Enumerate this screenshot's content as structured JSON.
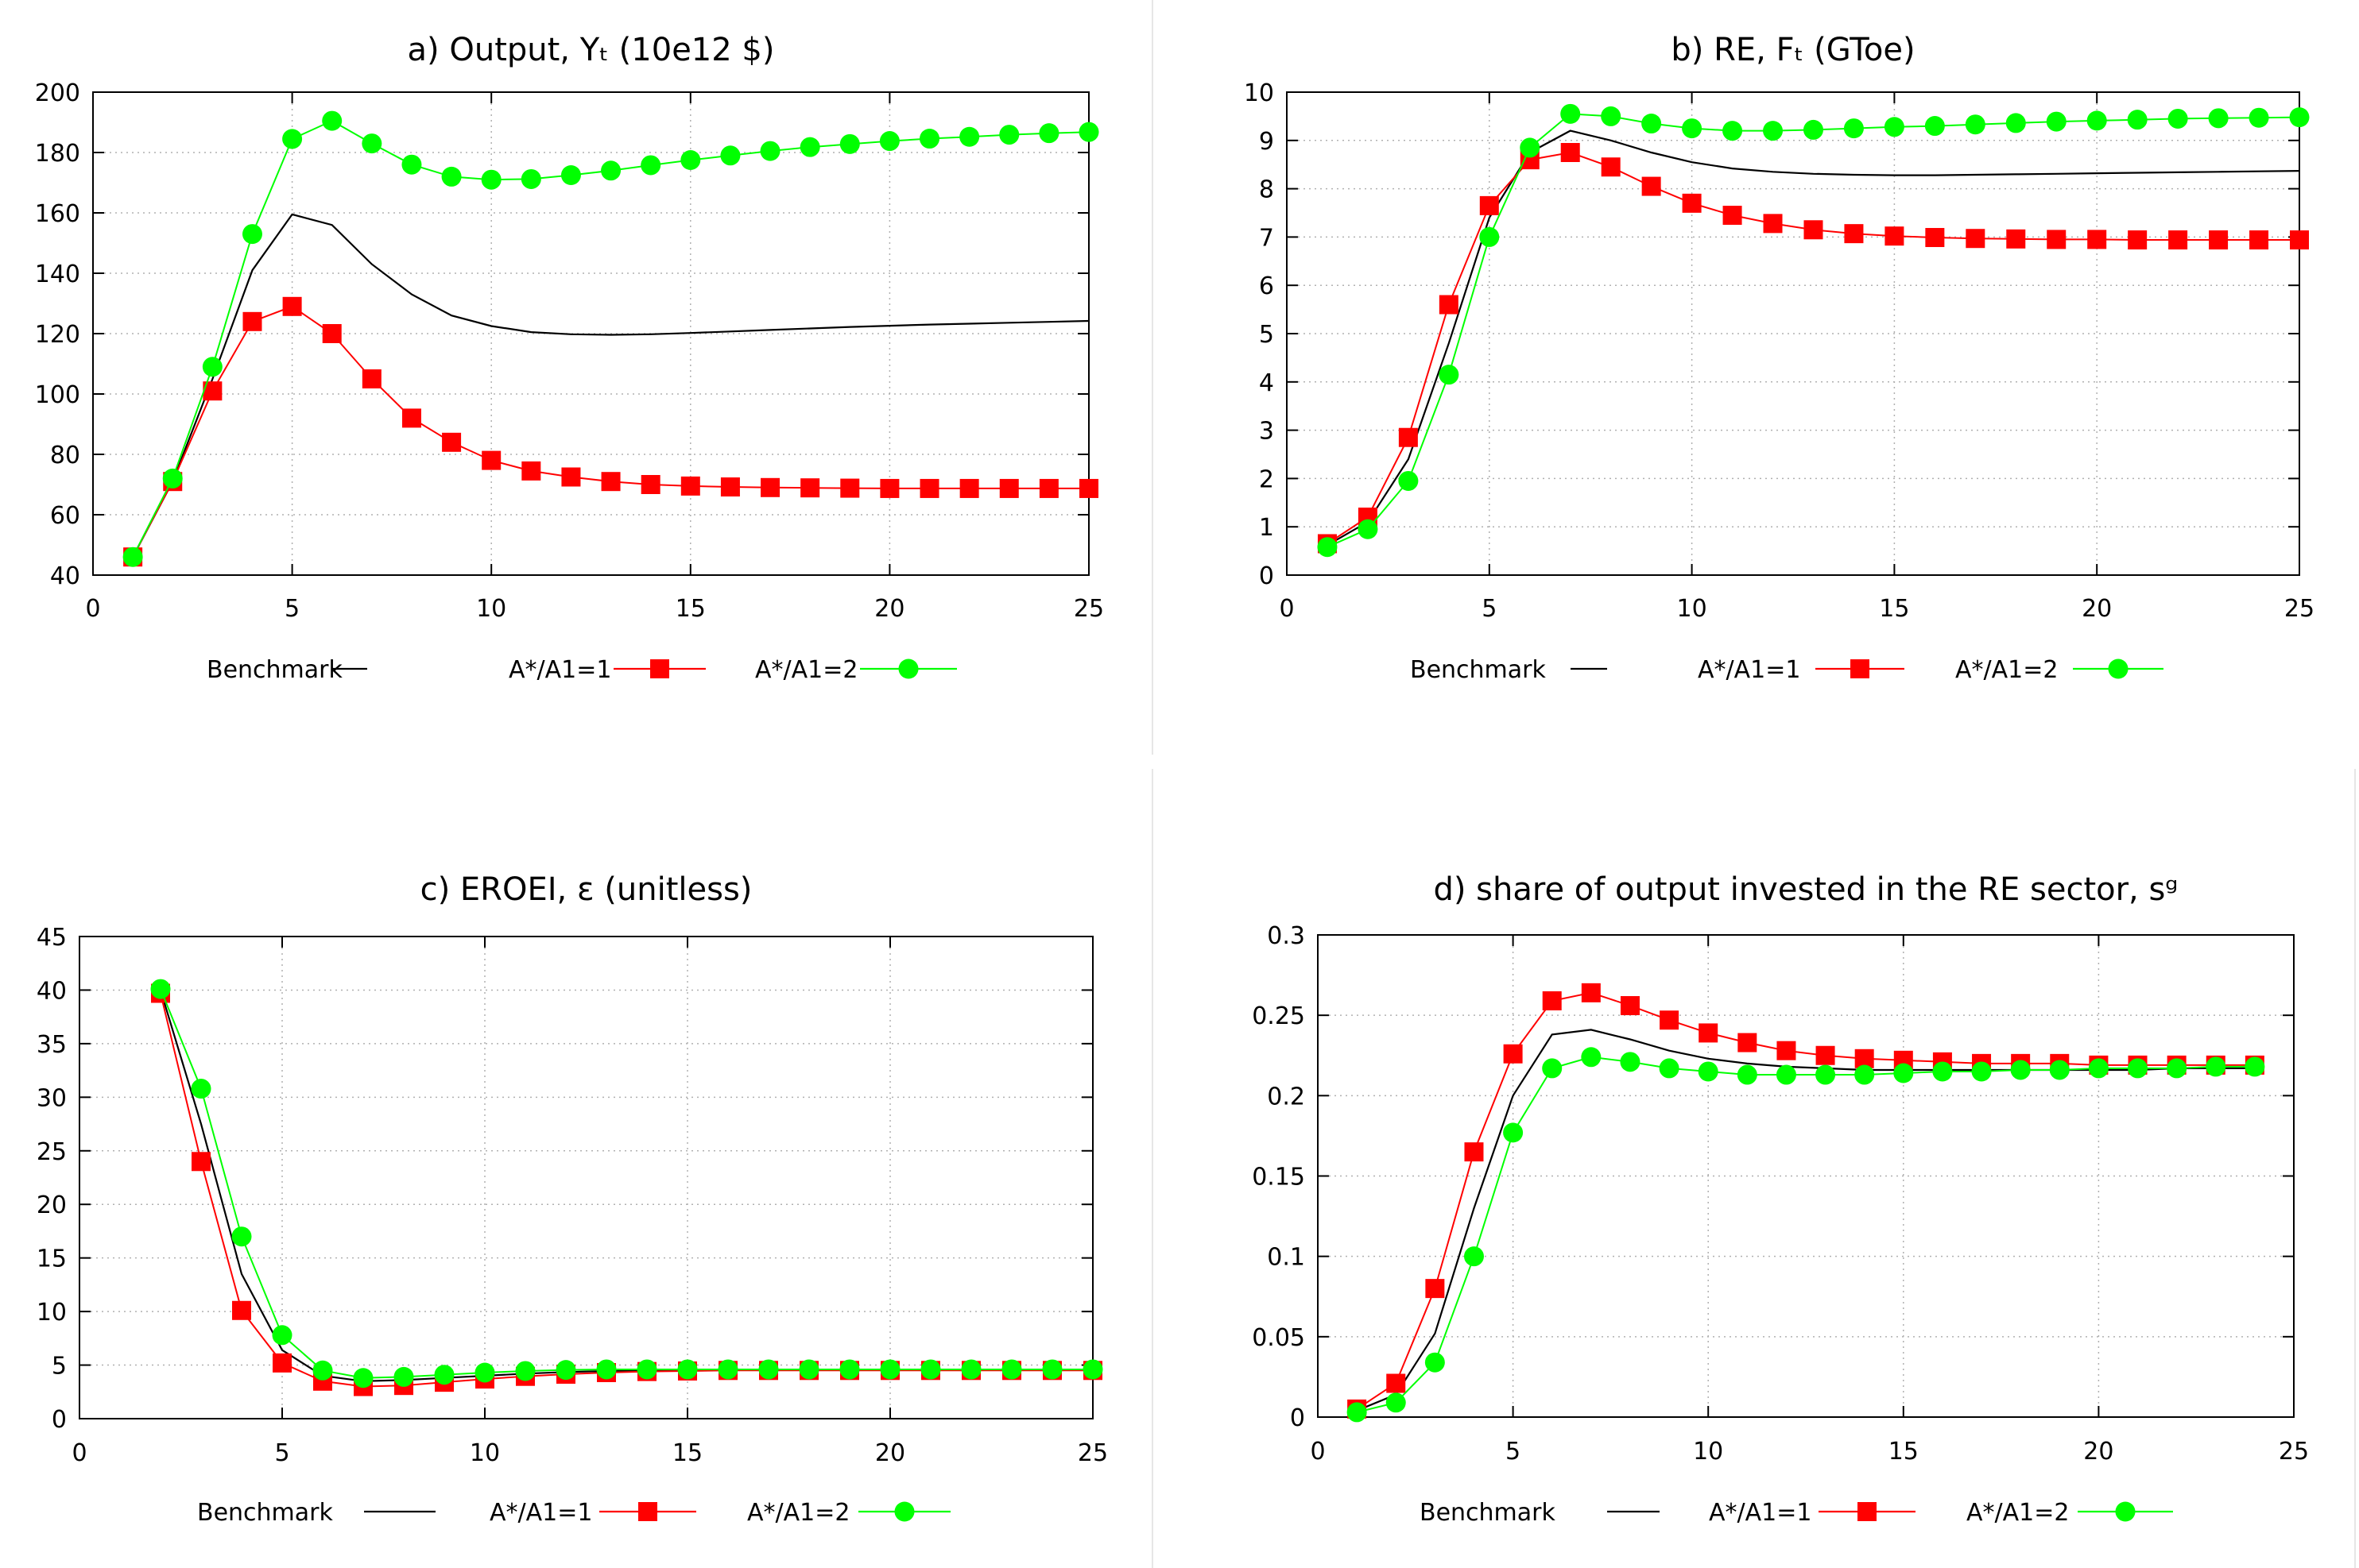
{
  "colors": {
    "benchmark": "#000000",
    "series1": "#ff0000",
    "series2": "#00ff00",
    "grid": "#b0b0b0"
  },
  "chart_data": [
    {
      "id": "a",
      "type": "line",
      "title": "a) Output, Yₜ (10e12 $)",
      "xlabel": "",
      "ylabel": "",
      "xlim": [
        0,
        25
      ],
      "ylim": [
        40,
        200
      ],
      "xticks": [
        "0",
        "5",
        "10",
        "15",
        "20",
        "25"
      ],
      "yticks": [
        "40",
        "60",
        "80",
        "100",
        "120",
        "140",
        "160",
        "180",
        "200"
      ],
      "grid": true,
      "legend": {
        "position": "bottom",
        "entries": [
          "Benchmark",
          "A*/A1=1",
          "A*/A1=2"
        ]
      },
      "x": [
        1,
        2,
        3,
        4,
        5,
        6,
        7,
        8,
        9,
        10,
        11,
        12,
        13,
        14,
        15,
        16,
        17,
        18,
        19,
        20,
        21,
        22,
        23,
        24,
        25
      ],
      "series": [
        {
          "name": "Benchmark",
          "values": [
            46,
            71,
            105,
            141,
            159.5,
            156,
            143,
            133,
            126,
            122.5,
            120.5,
            119.8,
            119.6,
            119.8,
            120.2,
            120.7,
            121.2,
            121.7,
            122.2,
            122.6,
            123,
            123.3,
            123.6,
            123.9,
            124.2
          ]
        },
        {
          "name": "A*/A1=1",
          "values": [
            46,
            71,
            101,
            124,
            129,
            120,
            105,
            92,
            84,
            78,
            74.5,
            72.5,
            71,
            70,
            69.5,
            69.2,
            69,
            68.9,
            68.8,
            68.7,
            68.7,
            68.7,
            68.7,
            68.7,
            68.7
          ]
        },
        {
          "name": "A*/A1=2",
          "values": [
            46,
            72,
            109,
            153,
            184.5,
            190.5,
            183,
            176,
            172,
            171,
            171.2,
            172.5,
            174,
            175.8,
            177.5,
            179,
            180.5,
            181.8,
            182.8,
            183.8,
            184.6,
            185.2,
            185.9,
            186.4,
            186.8
          ]
        }
      ]
    },
    {
      "id": "b",
      "type": "line",
      "title": "b) RE, Fₜ (GToe)",
      "xlabel": "",
      "ylabel": "",
      "xlim": [
        0,
        25
      ],
      "ylim": [
        0,
        10
      ],
      "xticks": [
        "0",
        "5",
        "10",
        "15",
        "20",
        "25"
      ],
      "yticks": [
        "0",
        "1",
        "2",
        "3",
        "4",
        "5",
        "6",
        "7",
        "8",
        "9",
        "10"
      ],
      "grid": true,
      "legend": {
        "position": "bottom",
        "entries": [
          "Benchmark",
          "A*/A1=1",
          "A*/A1=2"
        ]
      },
      "x": [
        1,
        2,
        3,
        4,
        5,
        6,
        7,
        8,
        9,
        10,
        11,
        12,
        13,
        14,
        15,
        16,
        17,
        18,
        19,
        20,
        21,
        22,
        23,
        24,
        25
      ],
      "series": [
        {
          "name": "Benchmark",
          "values": [
            0.62,
            1.1,
            2.4,
            4.8,
            7.4,
            8.75,
            9.2,
            9.0,
            8.75,
            8.55,
            8.42,
            8.35,
            8.31,
            8.29,
            8.28,
            8.28,
            8.29,
            8.3,
            8.31,
            8.32,
            8.33,
            8.34,
            8.35,
            8.36,
            8.37
          ]
        },
        {
          "name": "A*/A1=1",
          "values": [
            0.65,
            1.2,
            2.85,
            5.6,
            7.65,
            8.6,
            8.75,
            8.45,
            8.05,
            7.7,
            7.45,
            7.28,
            7.15,
            7.07,
            7.02,
            6.99,
            6.97,
            6.96,
            6.95,
            6.95,
            6.94,
            6.94,
            6.94,
            6.94,
            6.94
          ]
        },
        {
          "name": "A*/A1=2",
          "values": [
            0.58,
            0.95,
            1.95,
            4.15,
            7.0,
            8.85,
            9.55,
            9.5,
            9.35,
            9.25,
            9.2,
            9.2,
            9.22,
            9.25,
            9.28,
            9.3,
            9.33,
            9.36,
            9.39,
            9.41,
            9.43,
            9.45,
            9.46,
            9.47,
            9.48
          ]
        }
      ]
    },
    {
      "id": "c",
      "type": "line",
      "title": "c) EROEI, ε (unitless)",
      "xlabel": "",
      "ylabel": "",
      "xlim": [
        0,
        25
      ],
      "ylim": [
        0,
        45
      ],
      "xticks": [
        "0",
        "5",
        "10",
        "15",
        "20",
        "25"
      ],
      "yticks": [
        "0",
        "5",
        "10",
        "15",
        "20",
        "25",
        "30",
        "35",
        "40",
        "45"
      ],
      "grid": true,
      "legend": {
        "position": "bottom",
        "entries": [
          "Benchmark",
          "A*/A1=1",
          "A*/A1=2"
        ]
      },
      "x": [
        2,
        3,
        4,
        5,
        6,
        7,
        8,
        9,
        10,
        11,
        12,
        13,
        14,
        15,
        16,
        17,
        18,
        19,
        20,
        21,
        22,
        23,
        24,
        25
      ],
      "series": [
        {
          "name": "Benchmark",
          "values": [
            40,
            27.5,
            13.5,
            6.4,
            4.0,
            3.5,
            3.6,
            3.8,
            4.0,
            4.2,
            4.35,
            4.45,
            4.5,
            4.55,
            4.55,
            4.55,
            4.55,
            4.55,
            4.55,
            4.55,
            4.55,
            4.55,
            4.55,
            4.55
          ]
        },
        {
          "name": "A*/A1=1",
          "values": [
            39.7,
            24,
            10.1,
            5.2,
            3.5,
            3.0,
            3.1,
            3.4,
            3.7,
            3.95,
            4.15,
            4.3,
            4.4,
            4.45,
            4.5,
            4.5,
            4.5,
            4.5,
            4.5,
            4.5,
            4.5,
            4.5,
            4.5,
            4.5
          ]
        },
        {
          "name": "A*/A1=2",
          "values": [
            40.1,
            30.8,
            17,
            7.8,
            4.5,
            3.8,
            3.9,
            4.1,
            4.3,
            4.45,
            4.55,
            4.6,
            4.6,
            4.6,
            4.6,
            4.6,
            4.6,
            4.6,
            4.6,
            4.6,
            4.6,
            4.6,
            4.6,
            4.6
          ]
        }
      ]
    },
    {
      "id": "d",
      "type": "line",
      "title": "d) share of output invested in the RE sector, sᵍ",
      "xlabel": "",
      "ylabel": "",
      "xlim": [
        0,
        25
      ],
      "ylim": [
        0,
        0.3
      ],
      "xticks": [
        "0",
        "5",
        "10",
        "15",
        "20",
        "25"
      ],
      "yticks": [
        "0",
        "0.05",
        "0.1",
        "0.15",
        "0.2",
        "0.25",
        "0.3"
      ],
      "grid": true,
      "legend": {
        "position": "bottom",
        "entries": [
          "Benchmark",
          "A*/A1=1",
          "A*/A1=2"
        ]
      },
      "x": [
        1,
        2,
        3,
        4,
        5,
        6,
        7,
        8,
        9,
        10,
        11,
        12,
        13,
        14,
        15,
        16,
        17,
        18,
        19,
        20,
        21,
        22,
        23,
        24
      ],
      "series": [
        {
          "name": "Benchmark",
          "values": [
            0.004,
            0.014,
            0.052,
            0.13,
            0.2,
            0.238,
            0.241,
            0.235,
            0.228,
            0.223,
            0.22,
            0.218,
            0.217,
            0.216,
            0.216,
            0.216,
            0.216,
            0.216,
            0.216,
            0.216,
            0.216,
            0.217,
            0.217,
            0.217
          ]
        },
        {
          "name": "A*/A1=1",
          "values": [
            0.005,
            0.021,
            0.08,
            0.165,
            0.226,
            0.259,
            0.264,
            0.256,
            0.247,
            0.239,
            0.233,
            0.228,
            0.225,
            0.223,
            0.222,
            0.221,
            0.22,
            0.22,
            0.22,
            0.219,
            0.219,
            0.219,
            0.219,
            0.219
          ]
        },
        {
          "name": "A*/A1=2",
          "values": [
            0.003,
            0.009,
            0.034,
            0.1,
            0.177,
            0.217,
            0.224,
            0.221,
            0.217,
            0.215,
            0.213,
            0.213,
            0.213,
            0.213,
            0.214,
            0.215,
            0.215,
            0.216,
            0.216,
            0.217,
            0.217,
            0.217,
            0.218,
            0.218
          ]
        }
      ]
    }
  ]
}
